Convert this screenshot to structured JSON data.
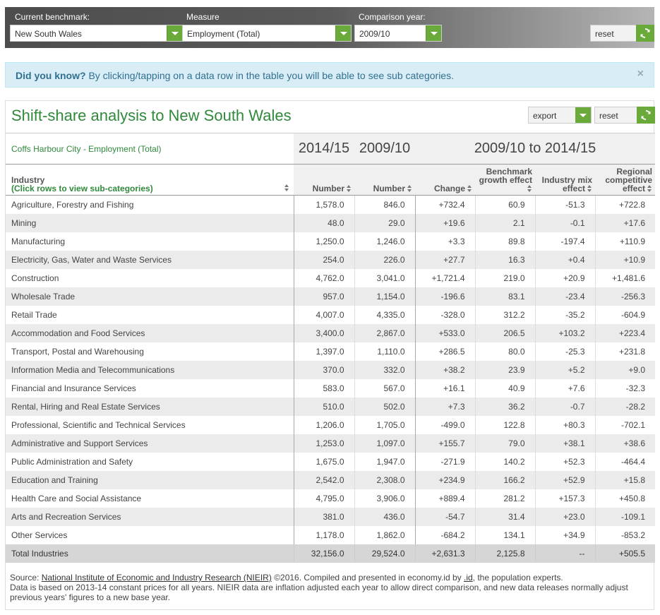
{
  "controls": {
    "benchmark_label": "Current benchmark:",
    "benchmark_value": "New South Wales",
    "measure_label": "Measure",
    "measure_value": "Employment (Total)",
    "year_label": "Comparison year:",
    "year_value": "2009/10",
    "reset_label": "reset"
  },
  "info": {
    "bold": "Did you know?",
    "text": " By clicking/tapping on a data row in the table you will be able to see sub categories.",
    "close": "×"
  },
  "panel": {
    "title": "Shift-share analysis to New South Wales",
    "export_label": "export",
    "reset_label": "reset",
    "subtitle": "Coffs Harbour City - Employment (Total)",
    "year1": "2014/15",
    "year2": "2009/10",
    "range": "2009/10 to 2014/15"
  },
  "columns": {
    "industry": "Industry",
    "industry_hint": "(Click rows to view sub-categories)",
    "number1": "Number",
    "number2": "Number",
    "change": "Change",
    "benchmark": "Benchmark growth effect",
    "mix": "Industry mix effect",
    "regional": "Regional competitive effect"
  },
  "rows": [
    [
      "Agriculture, Forestry and Fishing",
      "1,578.0",
      "846.0",
      "+732.4",
      "60.9",
      "-51.3",
      "+722.8"
    ],
    [
      "Mining",
      "48.0",
      "29.0",
      "+19.6",
      "2.1",
      "-0.1",
      "+17.6"
    ],
    [
      "Manufacturing",
      "1,250.0",
      "1,246.0",
      "+3.3",
      "89.8",
      "-197.4",
      "+110.9"
    ],
    [
      "Electricity, Gas, Water and Waste Services",
      "254.0",
      "226.0",
      "+27.7",
      "16.3",
      "+0.4",
      "+10.9"
    ],
    [
      "Construction",
      "4,762.0",
      "3,041.0",
      "+1,721.4",
      "219.0",
      "+20.9",
      "+1,481.6"
    ],
    [
      "Wholesale Trade",
      "957.0",
      "1,154.0",
      "-196.6",
      "83.1",
      "-23.4",
      "-256.3"
    ],
    [
      "Retail Trade",
      "4,007.0",
      "4,335.0",
      "-328.0",
      "312.2",
      "-35.2",
      "-604.9"
    ],
    [
      "Accommodation and Food Services",
      "3,400.0",
      "2,867.0",
      "+533.0",
      "206.5",
      "+103.2",
      "+223.4"
    ],
    [
      "Transport, Postal and Warehousing",
      "1,397.0",
      "1,110.0",
      "+286.5",
      "80.0",
      "-25.3",
      "+231.8"
    ],
    [
      "Information Media and Telecommunications",
      "370.0",
      "332.0",
      "+38.2",
      "23.9",
      "+5.2",
      "+9.0"
    ],
    [
      "Financial and Insurance Services",
      "583.0",
      "567.0",
      "+16.1",
      "40.9",
      "+7.6",
      "-32.3"
    ],
    [
      "Rental, Hiring and Real Estate Services",
      "510.0",
      "502.0",
      "+7.3",
      "36.2",
      "-0.7",
      "-28.2"
    ],
    [
      "Professional, Scientific and Technical Services",
      "1,206.0",
      "1,705.0",
      "-499.0",
      "122.8",
      "+80.3",
      "-702.1"
    ],
    [
      "Administrative and Support Services",
      "1,253.0",
      "1,097.0",
      "+155.7",
      "79.0",
      "+38.1",
      "+38.6"
    ],
    [
      "Public Administration and Safety",
      "1,675.0",
      "1,947.0",
      "-271.9",
      "140.2",
      "+52.3",
      "-464.4"
    ],
    [
      "Education and Training",
      "2,542.0",
      "2,308.0",
      "+234.9",
      "166.2",
      "+52.9",
      "+15.8"
    ],
    [
      "Health Care and Social Assistance",
      "4,795.0",
      "3,906.0",
      "+889.4",
      "281.2",
      "+157.3",
      "+450.8"
    ],
    [
      "Arts and Recreation Services",
      "381.0",
      "436.0",
      "-54.7",
      "31.4",
      "+23.0",
      "-109.1"
    ],
    [
      "Other Services",
      "1,178.0",
      "1,862.0",
      "-684.2",
      "134.1",
      "+34.9",
      "-853.2"
    ]
  ],
  "total": [
    "Total Industries",
    "32,156.0",
    "29,524.0",
    "+2,631.3",
    "2,125.8",
    "--",
    "+505.5"
  ],
  "source": {
    "prefix": "Source: ",
    "link1": "National Institute of Economic and Industry Research (NIEIR)",
    "mid": " ©2016. Compiled and presented in economy.id by ",
    "link2": ".id",
    "suffix": ", the population experts.",
    "note": "Data is based on 2013-14 constant prices for all years. NIEIR data are inflation adjusted each year to allow direct comparison, and new data releases normally adjust previous years' figures to a new base year."
  },
  "colors": {
    "accent_green": "#6aaa3a",
    "title_green": "#2f8a3a",
    "info_bg": "#d9edf7"
  }
}
